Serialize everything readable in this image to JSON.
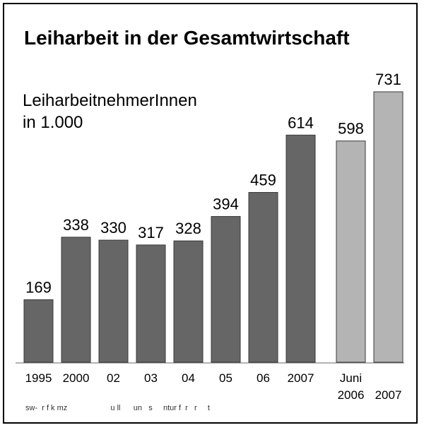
{
  "chart_data": {
    "type": "bar",
    "title": "Leiharbeit in der Gesamtwirtschaft",
    "subtitle_lines": [
      "LeiharbeitnehmerInnen",
      "in 1.000"
    ],
    "categories": [
      {
        "top": "1995",
        "bottom": ""
      },
      {
        "top": "2000",
        "bottom": ""
      },
      {
        "top": "02",
        "bottom": ""
      },
      {
        "top": "03",
        "bottom": ""
      },
      {
        "top": "04",
        "bottom": ""
      },
      {
        "top": "05",
        "bottom": ""
      },
      {
        "top": "06",
        "bottom": ""
      },
      {
        "top": "2007",
        "bottom": ""
      },
      {
        "top": "Juni",
        "bottom": "2006"
      },
      {
        "top": "",
        "bottom": "2007"
      }
    ],
    "values": [
      169,
      338,
      330,
      317,
      328,
      394,
      459,
      614,
      598,
      731
    ],
    "value_labels": [
      "169",
      "338",
      "330",
      "317",
      "328",
      "394",
      "459",
      "614",
      "598",
      "731"
    ],
    "bar_groups": [
      "annual",
      "annual",
      "annual",
      "annual",
      "annual",
      "annual",
      "annual",
      "annual",
      "june",
      "june"
    ],
    "colors": {
      "annual": "#666666",
      "june": "#b4b4b4",
      "bar_edge": "#3a3a3a"
    },
    "ylim": [
      0,
      731
    ],
    "grid": false,
    "legend": "none"
  },
  "footer_text": "sw-  r f k mz                    u ll      un   s     ntur f  r   r     t"
}
